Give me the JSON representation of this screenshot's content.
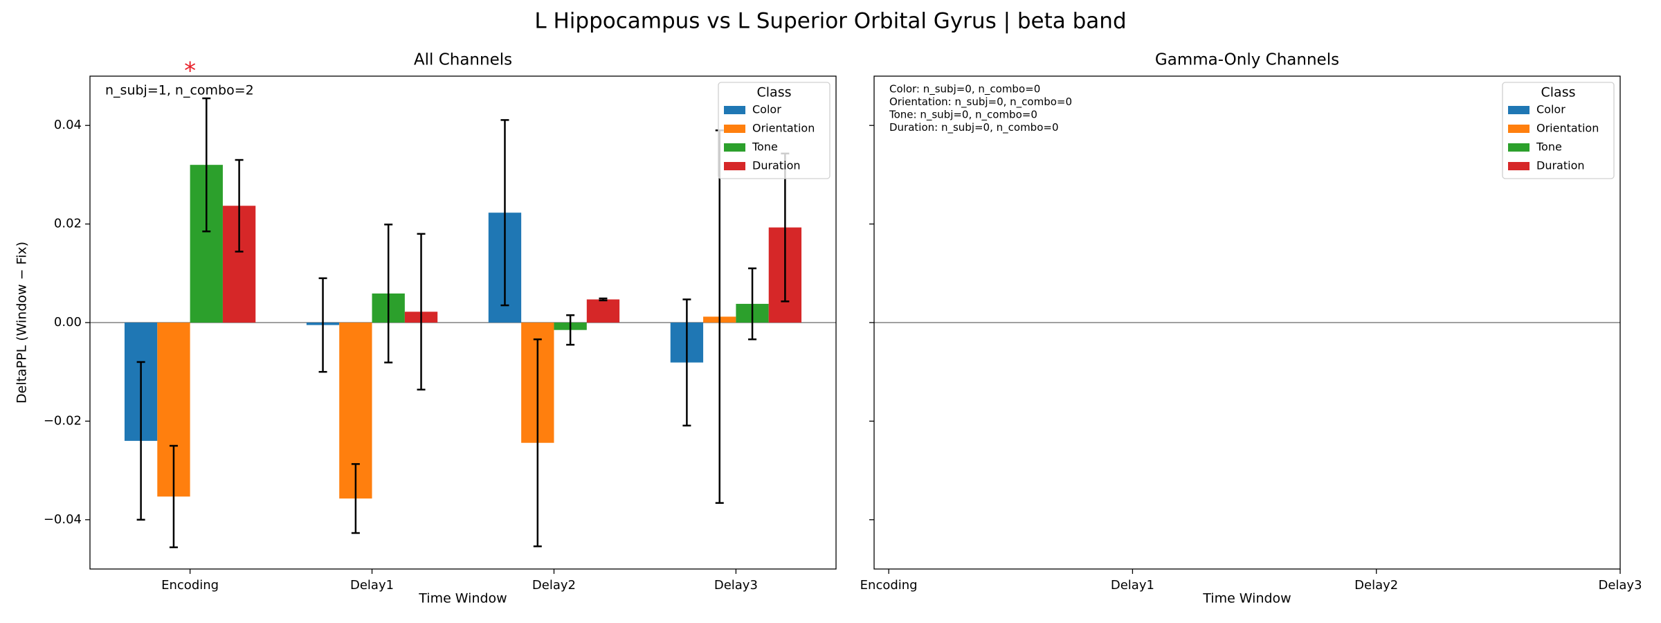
{
  "title": "L Hippocampus vs L Superior Orbital Gyrus  |  beta band",
  "chart_data": [
    {
      "type": "bar",
      "title": "All Channels",
      "xlabel": "Time Window",
      "ylabel": "DeltaPPL (Window − Fix)",
      "categories": [
        "Encoding",
        "Delay1",
        "Delay2",
        "Delay3"
      ],
      "xlim": [
        -0.55,
        3.55
      ],
      "series": [
        {
          "name": "Color",
          "color": "#1f77b4",
          "values": [
            -0.024,
            -0.0005,
            0.0223,
            -0.0081
          ],
          "errors": [
            0.016,
            0.0095,
            0.0188,
            0.0128
          ]
        },
        {
          "name": "Orientation",
          "color": "#ff7f0e",
          "values": [
            -0.0353,
            -0.0357,
            -0.0244,
            0.0012
          ],
          "errors": [
            0.0103,
            0.007,
            0.021,
            0.0378
          ]
        },
        {
          "name": "Tone",
          "color": "#2ca02c",
          "values": [
            0.032,
            0.0059,
            -0.0015,
            0.0038
          ],
          "errors": [
            0.0135,
            0.014,
            0.003,
            0.0072
          ]
        },
        {
          "name": "Duration",
          "color": "#d62728",
          "values": [
            0.0237,
            0.0022,
            0.0047,
            0.0193
          ],
          "errors": [
            0.0093,
            0.0158,
            0.0002,
            0.015
          ]
        }
      ],
      "ylim": [
        -0.05,
        0.05
      ],
      "yticks": [
        {
          "value": -0.04,
          "label": "−0.04"
        },
        {
          "value": -0.02,
          "label": "−0.02"
        },
        {
          "value": 0,
          "label": "0.00"
        },
        {
          "value": 0.02,
          "label": "0.02"
        },
        {
          "value": 0.04,
          "label": "0.04"
        }
      ],
      "hline": 0,
      "legend_title": "Class",
      "legend": "upper right",
      "annotations": [
        "n_subj=1, n_combo=2"
      ],
      "significance": {
        "category": "Encoding",
        "label": "*",
        "color": "#e8212a"
      }
    },
    {
      "type": "bar",
      "title": "Gamma-Only Channels",
      "xlabel": "Time Window",
      "categories": [
        "Encoding",
        "Delay1",
        "Delay2",
        "Delay3"
      ],
      "xlim": [
        -0.06,
        3
      ],
      "series": [
        {
          "name": "Color",
          "color": "#1f77b4",
          "values": [
            null,
            null,
            null,
            null
          ]
        },
        {
          "name": "Orientation",
          "color": "#ff7f0e",
          "values": [
            null,
            null,
            null,
            null
          ]
        },
        {
          "name": "Tone",
          "color": "#2ca02c",
          "values": [
            null,
            null,
            null,
            null
          ]
        },
        {
          "name": "Duration",
          "color": "#d62728",
          "values": [
            null,
            null,
            null,
            null
          ]
        }
      ],
      "ylim": [
        -0.05,
        0.05
      ],
      "hline": 0,
      "legend_title": "Class",
      "legend": "upper right",
      "annotations": [
        "Color: n_subj=0, n_combo=0",
        "Orientation: n_subj=0, n_combo=0",
        "Tone: n_subj=0, n_combo=0",
        "Duration: n_subj=0, n_combo=0"
      ]
    }
  ]
}
